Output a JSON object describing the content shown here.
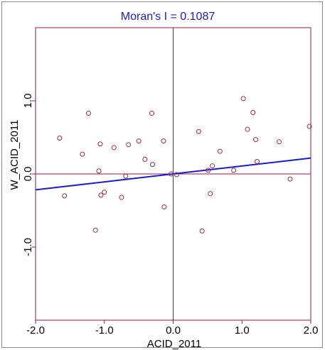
{
  "chart_data": {
    "type": "scatter",
    "title": "Moran's I = 0.1087",
    "xlabel": "ACID_2011",
    "ylabel": "W_ACID_2011",
    "xlim": [
      -2.0,
      2.0
    ],
    "ylim": [
      -2.0,
      2.0
    ],
    "x_ticks": [
      "-2.0",
      "-1.0",
      "0.0",
      "1.0",
      "2.0"
    ],
    "y_ticks": [
      "-1.0",
      "0.0",
      "1.0"
    ],
    "regression_slope": 0.1087,
    "points": [
      {
        "x": -1.65,
        "y": 0.49
      },
      {
        "x": -1.58,
        "y": -0.3
      },
      {
        "x": -1.32,
        "y": 0.27
      },
      {
        "x": -1.23,
        "y": 0.83
      },
      {
        "x": -1.13,
        "y": -0.77
      },
      {
        "x": -1.08,
        "y": 0.04
      },
      {
        "x": -1.06,
        "y": 0.41
      },
      {
        "x": -1.05,
        "y": -0.29
      },
      {
        "x": -1.0,
        "y": -0.25
      },
      {
        "x": -0.86,
        "y": 0.36
      },
      {
        "x": -0.75,
        "y": -0.32
      },
      {
        "x": -0.69,
        "y": -0.03
      },
      {
        "x": -0.65,
        "y": 0.4
      },
      {
        "x": -0.5,
        "y": 0.45
      },
      {
        "x": -0.41,
        "y": 0.2
      },
      {
        "x": -0.31,
        "y": 0.83
      },
      {
        "x": -0.3,
        "y": 0.13
      },
      {
        "x": -0.14,
        "y": 0.45
      },
      {
        "x": -0.13,
        "y": -0.45
      },
      {
        "x": -0.03,
        "y": 0.0
      },
      {
        "x": 0.05,
        "y": -0.01
      },
      {
        "x": 0.37,
        "y": 0.58
      },
      {
        "x": 0.42,
        "y": -0.78
      },
      {
        "x": 0.51,
        "y": 0.05
      },
      {
        "x": 0.54,
        "y": -0.27
      },
      {
        "x": 0.57,
        "y": 0.11
      },
      {
        "x": 0.68,
        "y": 0.31
      },
      {
        "x": 0.88,
        "y": 0.05
      },
      {
        "x": 1.02,
        "y": 1.03
      },
      {
        "x": 1.08,
        "y": 0.61
      },
      {
        "x": 1.16,
        "y": 0.84
      },
      {
        "x": 1.2,
        "y": 0.47
      },
      {
        "x": 1.22,
        "y": 0.17
      },
      {
        "x": 1.54,
        "y": 0.44
      },
      {
        "x": 1.7,
        "y": -0.07
      },
      {
        "x": 1.98,
        "y": 0.65
      }
    ],
    "colors": {
      "points": "#a0283c",
      "axes": "#8c1a4a",
      "regression": "#1a1ad6",
      "title": "#1a1ad6"
    },
    "grid": false
  }
}
